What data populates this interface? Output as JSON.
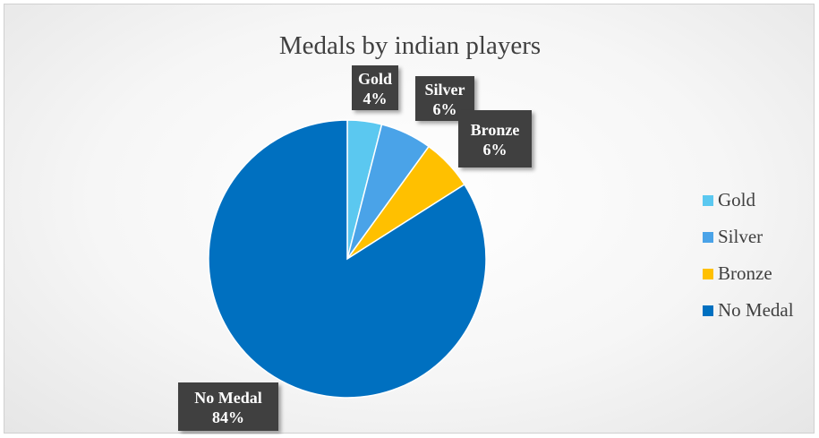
{
  "chart_data": {
    "type": "pie",
    "title": "Medals by indian players",
    "categories": [
      "Gold",
      "Silver",
      "Bronze",
      "No Medal"
    ],
    "values": [
      4,
      6,
      6,
      84
    ],
    "labels": [
      {
        "name": "Gold",
        "pct": "4%"
      },
      {
        "name": "Silver",
        "pct": "6%"
      },
      {
        "name": "Bronze",
        "pct": "6%"
      },
      {
        "name": "No Medal",
        "pct": "84%"
      }
    ],
    "colors": [
      "#5bc8f0",
      "#4aa3e8",
      "#ffc000",
      "#0070c0"
    ],
    "legend_position": "right"
  }
}
